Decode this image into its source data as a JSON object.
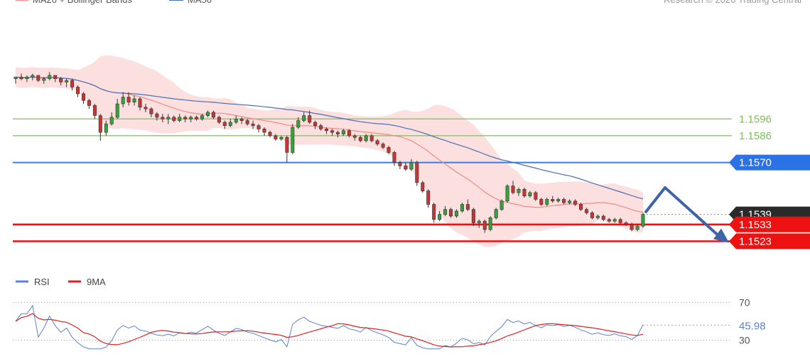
{
  "chart_data": [
    {
      "type": "candlestick",
      "title": "",
      "legend": [
        {
          "name": "MA20 + Bollinger Bands",
          "color": "#f28b8b"
        },
        {
          "name": "MA50",
          "color": "#4a6fb5"
        }
      ],
      "watermark": "Research © 2020 Trading Central",
      "ylim": [
        1.151,
        1.165
      ],
      "levels": [
        {
          "value": 1.1596,
          "label": "1.1596",
          "kind": "resistance",
          "color": "#7dbf5b"
        },
        {
          "value": 1.1586,
          "label": "1.1586",
          "kind": "resistance",
          "color": "#7dbf5b"
        },
        {
          "value": 1.157,
          "label": "1.1570",
          "kind": "pivot",
          "color": "#3d7be0"
        },
        {
          "value": 1.1539,
          "label": "1.1539",
          "kind": "last-price",
          "color": "#222222"
        },
        {
          "value": 1.1533,
          "label": "1.1533",
          "kind": "support",
          "color": "#ee1111"
        },
        {
          "value": 1.1523,
          "label": "1.1523",
          "kind": "support",
          "color": "#ee1111"
        }
      ],
      "forecast_path": [
        {
          "x": 0,
          "y": 1.154
        },
        {
          "x": 5,
          "y": 1.1555
        },
        {
          "x": 20,
          "y": 1.1523
        }
      ],
      "candles": [
        [
          1.162,
          1.1621,
          1.1617,
          1.1621
        ],
        [
          1.1621,
          1.1623,
          1.1619,
          1.162
        ],
        [
          1.162,
          1.1622,
          1.1618,
          1.1621
        ],
        [
          1.1621,
          1.1623,
          1.1619,
          1.1622
        ],
        [
          1.1622,
          1.1622,
          1.1618,
          1.1619
        ],
        [
          1.1619,
          1.1621,
          1.1617,
          1.162
        ],
        [
          1.162,
          1.1624,
          1.1619,
          1.1622
        ],
        [
          1.1622,
          1.1622,
          1.1618,
          1.162
        ],
        [
          1.162,
          1.1621,
          1.1616,
          1.1618
        ],
        [
          1.1618,
          1.162,
          1.1615,
          1.1619
        ],
        [
          1.1619,
          1.162,
          1.1613,
          1.1615
        ],
        [
          1.1615,
          1.1616,
          1.1609,
          1.1611
        ],
        [
          1.1611,
          1.1612,
          1.1605,
          1.1607
        ],
        [
          1.1607,
          1.1608,
          1.1602,
          1.1604
        ],
        [
          1.1604,
          1.1605,
          1.1596,
          1.1598
        ],
        [
          1.1598,
          1.1599,
          1.1583,
          1.1588
        ],
        [
          1.1588,
          1.1595,
          1.1586,
          1.1593
        ],
        [
          1.1593,
          1.16,
          1.1592,
          1.1597
        ],
        [
          1.1597,
          1.1608,
          1.1596,
          1.1605
        ],
        [
          1.1605,
          1.1612,
          1.1603,
          1.1609
        ],
        [
          1.1609,
          1.1612,
          1.1604,
          1.1606
        ],
        [
          1.1606,
          1.161,
          1.1604,
          1.1608
        ],
        [
          1.1608,
          1.1609,
          1.1601,
          1.1603
        ],
        [
          1.1603,
          1.1605,
          1.16,
          1.1602
        ],
        [
          1.1602,
          1.1603,
          1.1597,
          1.1599
        ],
        [
          1.1599,
          1.16,
          1.1595,
          1.1597
        ],
        [
          1.1597,
          1.1599,
          1.1594,
          1.1596
        ],
        [
          1.1596,
          1.1599,
          1.1593,
          1.1597
        ],
        [
          1.1597,
          1.1598,
          1.1594,
          1.1595
        ],
        [
          1.1595,
          1.1599,
          1.1594,
          1.1597
        ],
        [
          1.1597,
          1.1598,
          1.1594,
          1.1596
        ],
        [
          1.1596,
          1.1598,
          1.1594,
          1.1597
        ],
        [
          1.1597,
          1.1598,
          1.1595,
          1.1596
        ],
        [
          1.1596,
          1.1599,
          1.1595,
          1.1598
        ],
        [
          1.1598,
          1.1601,
          1.1597,
          1.16
        ],
        [
          1.16,
          1.1601,
          1.1596,
          1.1597
        ],
        [
          1.1597,
          1.1598,
          1.1593,
          1.1594
        ],
        [
          1.1594,
          1.1595,
          1.159,
          1.1592
        ],
        [
          1.1592,
          1.1596,
          1.1591,
          1.1594
        ],
        [
          1.1594,
          1.1598,
          1.1593,
          1.1596
        ],
        [
          1.1596,
          1.1597,
          1.1593,
          1.1595
        ],
        [
          1.1595,
          1.1596,
          1.1592,
          1.1593
        ],
        [
          1.1593,
          1.1595,
          1.159,
          1.1592
        ],
        [
          1.1592,
          1.1593,
          1.1588,
          1.159
        ],
        [
          1.159,
          1.1591,
          1.1586,
          1.1588
        ],
        [
          1.1588,
          1.1589,
          1.1585,
          1.1586
        ],
        [
          1.1586,
          1.1587,
          1.1583,
          1.1584
        ],
        [
          1.1584,
          1.1586,
          1.1583,
          1.1585
        ],
        [
          1.1585,
          1.1586,
          1.157,
          1.1576
        ],
        [
          1.1576,
          1.1593,
          1.1575,
          1.1591
        ],
        [
          1.1591,
          1.1597,
          1.159,
          1.1595
        ],
        [
          1.1595,
          1.16,
          1.1594,
          1.1598
        ],
        [
          1.1598,
          1.1601,
          1.1593,
          1.1594
        ],
        [
          1.1594,
          1.1595,
          1.159,
          1.1592
        ],
        [
          1.1592,
          1.1593,
          1.1589,
          1.159
        ],
        [
          1.159,
          1.1591,
          1.1587,
          1.1589
        ],
        [
          1.1589,
          1.159,
          1.1586,
          1.1588
        ],
        [
          1.1588,
          1.1589,
          1.1585,
          1.1587
        ],
        [
          1.1587,
          1.159,
          1.1586,
          1.1589
        ],
        [
          1.1589,
          1.159,
          1.1585,
          1.1586
        ],
        [
          1.1586,
          1.1587,
          1.1583,
          1.1585
        ],
        [
          1.1585,
          1.1586,
          1.1582,
          1.1583
        ],
        [
          1.1583,
          1.1587,
          1.1582,
          1.1586
        ],
        [
          1.1586,
          1.1587,
          1.1582,
          1.1583
        ],
        [
          1.1583,
          1.1584,
          1.158,
          1.1581
        ],
        [
          1.1581,
          1.1582,
          1.1578,
          1.1579
        ],
        [
          1.1579,
          1.158,
          1.1575,
          1.1576
        ],
        [
          1.1576,
          1.1577,
          1.1568,
          1.157
        ],
        [
          1.157,
          1.1571,
          1.1566,
          1.1568
        ],
        [
          1.1568,
          1.157,
          1.1565,
          1.1566
        ],
        [
          1.1566,
          1.1572,
          1.1565,
          1.157
        ],
        [
          1.157,
          1.1571,
          1.1556,
          1.1558
        ],
        [
          1.1558,
          1.1559,
          1.1552,
          1.1553
        ],
        [
          1.1553,
          1.1554,
          1.1543,
          1.1545
        ],
        [
          1.1545,
          1.1546,
          1.1534,
          1.1536
        ],
        [
          1.1536,
          1.1541,
          1.1535,
          1.1539
        ],
        [
          1.1539,
          1.1544,
          1.1538,
          1.1542
        ],
        [
          1.1542,
          1.1543,
          1.1537,
          1.1538
        ],
        [
          1.1538,
          1.1542,
          1.1537,
          1.1541
        ],
        [
          1.1541,
          1.1546,
          1.154,
          1.1545
        ],
        [
          1.1545,
          1.1548,
          1.1541,
          1.1542
        ],
        [
          1.1542,
          1.1543,
          1.1532,
          1.1534
        ],
        [
          1.1534,
          1.1536,
          1.1531,
          1.1535
        ],
        [
          1.1535,
          1.1536,
          1.1528,
          1.153
        ],
        [
          1.153,
          1.1538,
          1.1529,
          1.1537
        ],
        [
          1.1537,
          1.1543,
          1.1536,
          1.1542
        ],
        [
          1.1542,
          1.1548,
          1.1541,
          1.1547
        ],
        [
          1.1547,
          1.1557,
          1.1546,
          1.1556
        ],
        [
          1.1556,
          1.1559,
          1.1551,
          1.1552
        ],
        [
          1.1552,
          1.1555,
          1.155,
          1.1554
        ],
        [
          1.1554,
          1.1555,
          1.1549,
          1.155
        ],
        [
          1.155,
          1.1553,
          1.1549,
          1.1552
        ],
        [
          1.1552,
          1.1553,
          1.1547,
          1.1548
        ],
        [
          1.1548,
          1.1549,
          1.1544,
          1.1545
        ],
        [
          1.1545,
          1.1549,
          1.1544,
          1.1548
        ],
        [
          1.1548,
          1.155,
          1.1546,
          1.1547
        ],
        [
          1.1547,
          1.1549,
          1.1546,
          1.1548
        ],
        [
          1.1548,
          1.1549,
          1.1545,
          1.1546
        ],
        [
          1.1546,
          1.1548,
          1.1545,
          1.1547
        ],
        [
          1.1547,
          1.1548,
          1.1544,
          1.1545
        ],
        [
          1.1545,
          1.1546,
          1.1541,
          1.1542
        ],
        [
          1.1542,
          1.1543,
          1.1539,
          1.154
        ],
        [
          1.154,
          1.1541,
          1.1536,
          1.1537
        ],
        [
          1.1537,
          1.1539,
          1.1536,
          1.1538
        ],
        [
          1.1538,
          1.1539,
          1.1535,
          1.1536
        ],
        [
          1.1536,
          1.1537,
          1.1534,
          1.1535
        ],
        [
          1.1535,
          1.1537,
          1.1534,
          1.1536
        ],
        [
          1.1536,
          1.1537,
          1.1533,
          1.1534
        ],
        [
          1.1534,
          1.1535,
          1.1532,
          1.1533
        ],
        [
          1.1533,
          1.1534,
          1.1529,
          1.153
        ],
        [
          1.153,
          1.1533,
          1.1529,
          1.1532
        ],
        [
          1.1532,
          1.154,
          1.1531,
          1.1539
        ]
      ]
    },
    {
      "type": "line",
      "title": "",
      "legend": [
        {
          "name": "RSI",
          "color": "#5b82d6"
        },
        {
          "name": "9MA",
          "color": "#e02020"
        }
      ],
      "ylim": [
        20,
        80
      ],
      "levels": [
        {
          "value": 70,
          "label": "70"
        },
        {
          "value": 30,
          "label": "30"
        }
      ],
      "last_value_label": "45.98",
      "last_value": 45.98
    }
  ]
}
